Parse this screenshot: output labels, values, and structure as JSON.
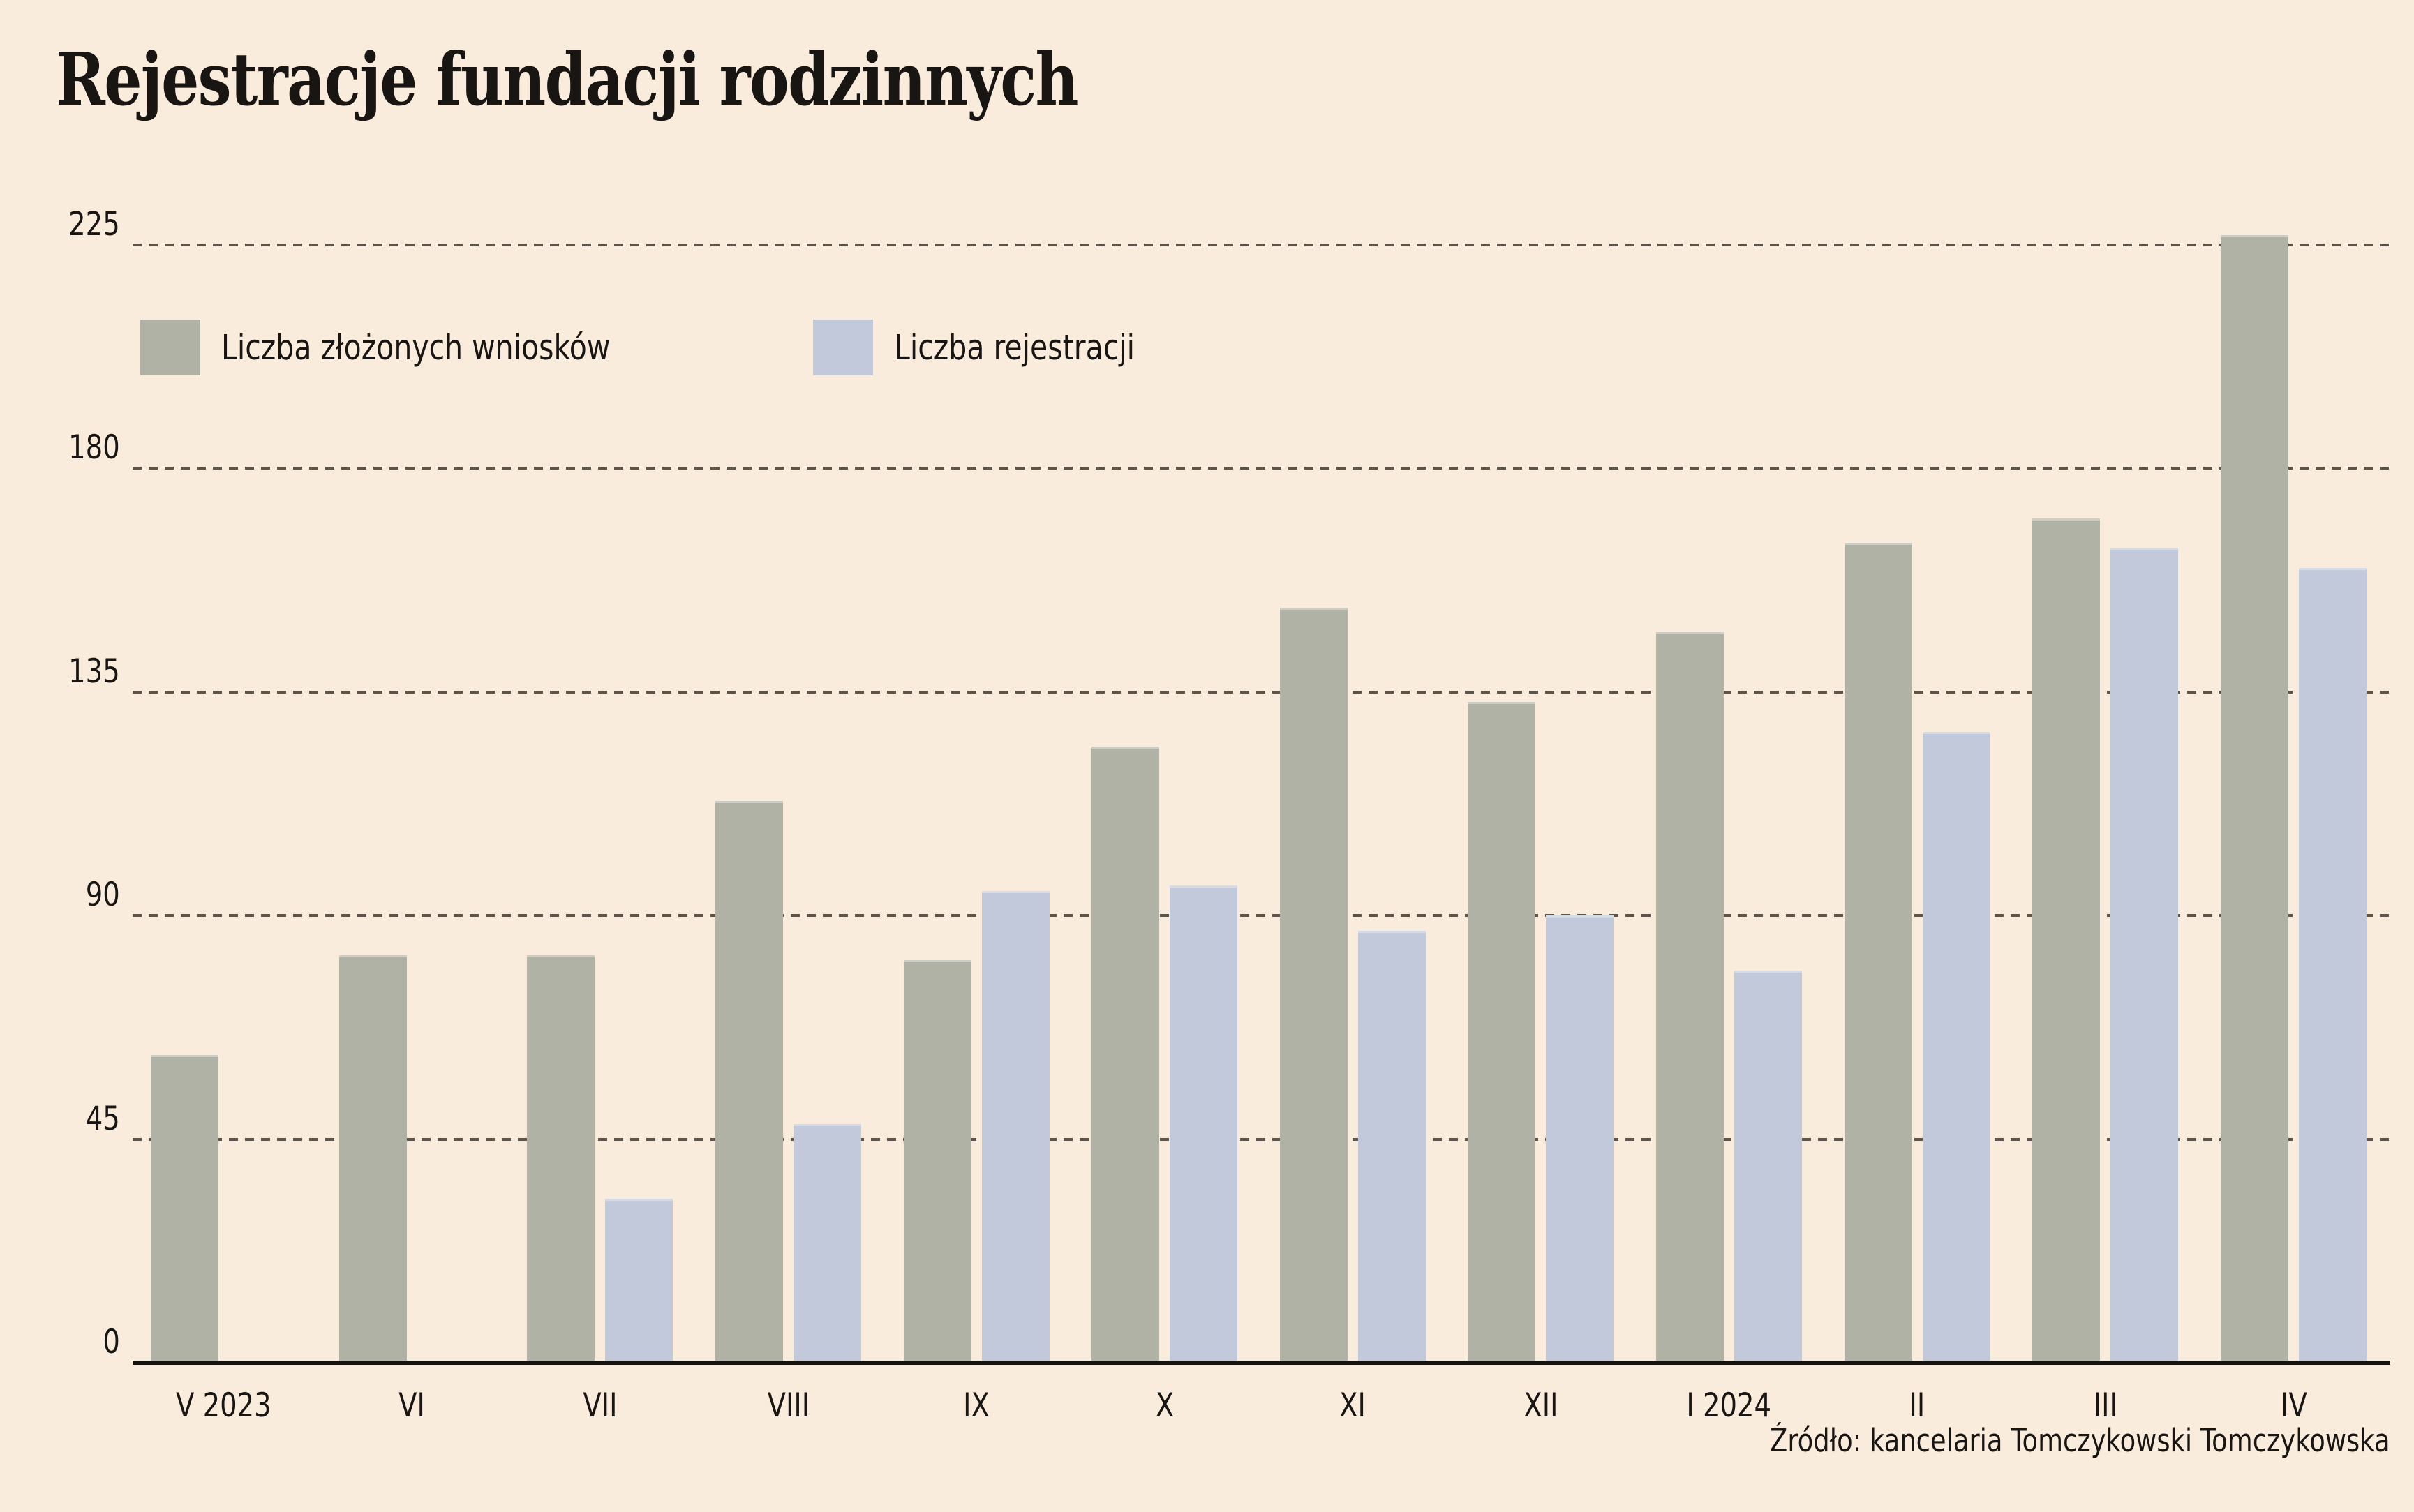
{
  "title": "Rejestracje fundacji rodzinnych",
  "source": "Źródło: kancelaria Tomczykowski Tomczykowska",
  "legend": [
    {
      "label": "Liczba złożonych wniosków",
      "color": "#b1b2a6"
    },
    {
      "label": "Liczba rejestracji",
      "color": "#c1c9da"
    }
  ],
  "colors": {
    "background": "#faecdd",
    "bar_applications": "#b1b2a6",
    "bar_registrations": "#c1c9da",
    "gridline": "#403a33",
    "baseline": "#15130f",
    "text": "#181512"
  },
  "chart_data": {
    "type": "bar",
    "title": "Rejestracje fundacji rodzinnych",
    "categories": [
      "V 2023",
      "VI",
      "VII",
      "VIII",
      "IX",
      "X",
      "XI",
      "XII",
      "I 2024",
      "II",
      "III",
      "IV"
    ],
    "series": [
      {
        "name": "Liczba złożonych wniosków",
        "color": "#b1b2a6",
        "values": [
          62,
          82,
          82,
          113,
          81,
          124,
          152,
          133,
          147,
          165,
          170,
          227
        ]
      },
      {
        "name": "Liczba rejestracji",
        "color": "#c1c9da",
        "values": [
          0,
          0,
          33,
          48,
          95,
          96,
          87,
          90,
          79,
          127,
          164,
          160
        ]
      }
    ],
    "y_ticks": [
      0,
      45,
      90,
      135,
      180,
      225
    ],
    "ylim": [
      0,
      235
    ],
    "xlabel": "",
    "ylabel": "",
    "grid": "horizontal dashed",
    "legend_position": "top-left inside plot",
    "source": "Źródło: kancelaria Tomczykowski Tomczykowska"
  }
}
